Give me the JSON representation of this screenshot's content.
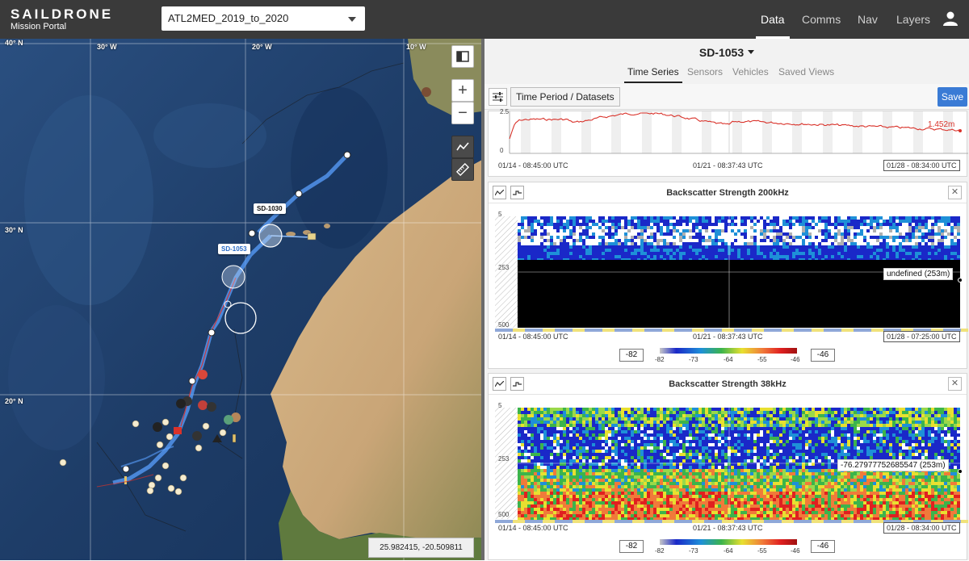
{
  "header": {
    "brand": "SAILDRONE",
    "subtitle": "Mission Portal",
    "mission": "ATL2MED_2019_to_2020",
    "nav": [
      "Data",
      "Comms",
      "Nav",
      "Layers"
    ],
    "active_nav": "Data"
  },
  "map": {
    "lat_labels": [
      "40° N",
      "30° N",
      "20° N"
    ],
    "lon_labels": [
      "30° W",
      "20° W",
      "10° W"
    ],
    "vehicle_labels": [
      "SD-1030",
      "SD-1053"
    ],
    "coordinates": "25.982415, -20.509811",
    "zoom_in": "+",
    "zoom_out": "−"
  },
  "panel": {
    "vehicle": "SD-1053",
    "tabs": [
      "Time Series",
      "Sensors",
      "Vehicles",
      "Saved Views"
    ],
    "active_tab": "Time Series",
    "time_period_button": "Time Period / Datasets",
    "save_button": "Save",
    "top_chart": {
      "y_ticks": [
        "2.5",
        "0"
      ],
      "value_label": "1.452m",
      "x_ticks": [
        "01/14 - 08:45:00 UTC",
        "01/21 - 08:37:43 UTC",
        "01/28 - 08:34:00 UTC"
      ]
    },
    "chart_200": {
      "title": "Backscatter Strength 200kHz",
      "depth_ticks": [
        "5",
        "253",
        "500"
      ],
      "hover": "undefined (253m)",
      "x_ticks": [
        "01/14 - 08:45:00 UTC",
        "01/21 - 08:37:43 UTC",
        "01/28 - 07:25:00 UTC"
      ],
      "cbar_min": "-82",
      "cbar_max": "-46",
      "cbar_ticks": [
        "-82",
        "-73",
        "-64",
        "-55",
        "-46"
      ]
    },
    "chart_38": {
      "title": "Backscatter Strength 38kHz",
      "depth_ticks": [
        "5",
        "253",
        "500"
      ],
      "hover": "-76.27977752685547 (253m)",
      "x_ticks": [
        "01/14 - 08:45:00 UTC",
        "01/21 - 08:37:43 UTC",
        "01/28 - 08:34:00 UTC"
      ],
      "cbar_min": "-82",
      "cbar_max": "-46",
      "cbar_ticks": [
        "-82",
        "-73",
        "-64",
        "-55",
        "-46"
      ]
    }
  },
  "colors": {
    "topbar": "#3a3a3a",
    "ocean": "#1d3a62",
    "land": "#c9a77a",
    "accent": "#3a7bd5",
    "track": "#5aa0ff",
    "line_chart": "#d9322a"
  }
}
